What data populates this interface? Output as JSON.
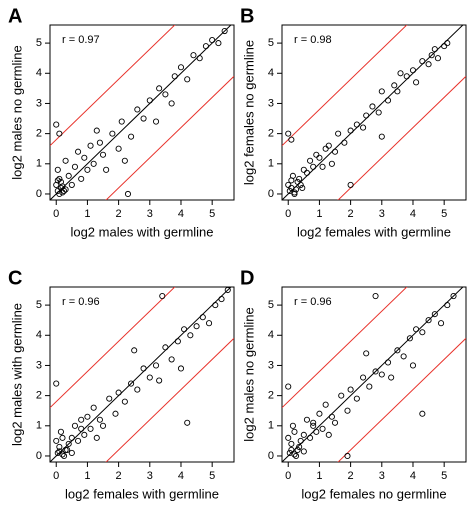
{
  "chart_data": [
    {
      "type": "scatter",
      "title": "A",
      "annotation": "r = 0.97",
      "x_label": "log2 males with germline",
      "y_label": "log2 males no germline",
      "color": "#000000",
      "x": [
        0.05,
        0.1,
        0.15,
        0.2,
        0.0,
        0.3,
        0.1,
        0.05,
        0.0,
        0.1,
        0.4,
        0.5,
        0.6,
        0.8,
        0.9,
        1.0,
        1.1,
        1.2,
        1.4,
        1.5,
        1.6,
        1.8,
        2.0,
        2.1,
        2.3,
        2.4,
        2.6,
        2.8,
        3.0,
        3.2,
        3.3,
        3.5,
        3.7,
        3.8,
        4.0,
        4.2,
        4.4,
        4.6,
        4.8,
        5.0,
        5.2,
        5.4,
        0.7,
        1.3,
        2.2,
        0.3,
        0.2,
        0.15,
        0.25,
        0.05
      ],
      "values": [
        0.1,
        0.0,
        0.2,
        0.05,
        0.3,
        0.15,
        0.5,
        0.8,
        2.3,
        2.0,
        0.6,
        0.3,
        0.9,
        0.5,
        1.2,
        0.8,
        1.6,
        1.0,
        1.7,
        1.3,
        0.8,
        2.0,
        1.5,
        2.4,
        0.0,
        1.9,
        2.8,
        2.5,
        3.1,
        2.4,
        3.5,
        3.3,
        3.0,
        3.9,
        4.2,
        3.8,
        4.6,
        4.5,
        4.9,
        5.1,
        5.0,
        5.4,
        1.4,
        2.1,
        1.1,
        1.1,
        0.25,
        0.4,
        0.1,
        0.45
      ],
      "lines": [
        {
          "slope": 1,
          "intercept": 0,
          "color": "#000000"
        },
        {
          "slope": 1,
          "intercept": 1.8,
          "color": "#e8322b"
        },
        {
          "slope": 1,
          "intercept": -1.8,
          "color": "#e8322b"
        }
      ],
      "xlim": [
        -0.2,
        5.7
      ],
      "ylim": [
        -0.2,
        5.6
      ],
      "xticks": [
        0,
        1,
        2,
        3,
        4,
        5
      ],
      "yticks": [
        0,
        1,
        2,
        3,
        4,
        5
      ]
    },
    {
      "type": "scatter",
      "title": "B",
      "annotation": "r = 0.98",
      "x_label": "log2 females with germline",
      "y_label": "log2 females no germline",
      "color": "#000000",
      "x": [
        0.05,
        0.1,
        0.2,
        0.0,
        0.3,
        0.15,
        0.4,
        0.5,
        0.0,
        0.1,
        0.6,
        0.7,
        0.8,
        0.9,
        1.0,
        1.1,
        1.2,
        1.3,
        1.5,
        1.6,
        1.8,
        2.0,
        2.2,
        2.4,
        2.5,
        2.7,
        2.9,
        3.0,
        3.2,
        3.4,
        3.5,
        3.6,
        3.8,
        4.0,
        4.1,
        4.3,
        4.5,
        4.6,
        4.7,
        4.8,
        5.0,
        5.1,
        0.25,
        0.35,
        2.0,
        1.4,
        3.0,
        0.2,
        0.1,
        0.45
      ],
      "values": [
        0.1,
        0.2,
        0.05,
        0.3,
        0.4,
        0.6,
        0.3,
        0.8,
        2.0,
        1.8,
        0.7,
        1.1,
        0.9,
        1.3,
        1.2,
        0.9,
        1.5,
        1.6,
        1.4,
        2.0,
        1.7,
        2.1,
        2.3,
        2.2,
        2.6,
        2.9,
        2.7,
        3.4,
        3.1,
        3.6,
        3.4,
        4.0,
        3.9,
        4.1,
        3.7,
        4.4,
        4.3,
        4.6,
        4.8,
        4.5,
        4.9,
        5.0,
        0.15,
        0.5,
        0.3,
        1.0,
        1.9,
        0.0,
        0.45,
        0.2
      ],
      "lines": [
        {
          "slope": 1,
          "intercept": 0,
          "color": "#000000"
        },
        {
          "slope": 1,
          "intercept": 1.8,
          "color": "#e8322b"
        },
        {
          "slope": 1,
          "intercept": -1.8,
          "color": "#e8322b"
        }
      ],
      "xlim": [
        -0.2,
        5.7
      ],
      "ylim": [
        -0.2,
        5.6
      ],
      "xticks": [
        0,
        1,
        2,
        3,
        4,
        5
      ],
      "yticks": [
        0,
        1,
        2,
        3,
        4,
        5
      ]
    },
    {
      "type": "scatter",
      "title": "C",
      "annotation": "r = 0.96",
      "x_label": "log2 females with germline",
      "y_label": "log2 males with germline",
      "color": "#000000",
      "x": [
        0.05,
        0.1,
        0.2,
        0.0,
        0.3,
        0.15,
        0.4,
        0.5,
        0.0,
        0.6,
        0.7,
        0.8,
        0.9,
        1.0,
        1.1,
        1.2,
        1.4,
        1.5,
        1.7,
        1.9,
        2.0,
        2.2,
        2.4,
        2.6,
        2.8,
        3.0,
        3.2,
        3.3,
        3.5,
        3.7,
        3.9,
        4.0,
        4.1,
        4.3,
        4.5,
        4.7,
        4.9,
        5.1,
        5.3,
        5.5,
        0.25,
        0.35,
        1.3,
        2.5,
        4.2,
        0.1,
        0.2,
        0.5,
        0.8,
        3.4
      ],
      "values": [
        0.1,
        0.3,
        0.05,
        0.5,
        0.2,
        0.8,
        0.4,
        0.6,
        2.4,
        1.0,
        0.5,
        1.2,
        0.7,
        1.3,
        0.9,
        1.6,
        1.2,
        1.0,
        1.9,
        1.4,
        2.1,
        1.8,
        2.4,
        2.2,
        2.9,
        2.6,
        3.0,
        2.5,
        3.6,
        3.2,
        3.8,
        2.9,
        4.2,
        4.0,
        4.3,
        4.6,
        4.4,
        5.0,
        5.2,
        5.5,
        0.0,
        0.2,
        0.6,
        3.5,
        1.1,
        0.15,
        0.6,
        0.1,
        0.9,
        5.3
      ],
      "lines": [
        {
          "slope": 1,
          "intercept": 0,
          "color": "#000000"
        },
        {
          "slope": 1,
          "intercept": 1.8,
          "color": "#e8322b"
        },
        {
          "slope": 1,
          "intercept": -1.8,
          "color": "#e8322b"
        }
      ],
      "xlim": [
        -0.2,
        5.7
      ],
      "ylim": [
        -0.2,
        5.6
      ],
      "xticks": [
        0,
        1,
        2,
        3,
        4,
        5
      ],
      "yticks": [
        0,
        1,
        2,
        3,
        4,
        5
      ]
    },
    {
      "type": "scatter",
      "title": "D",
      "annotation": "r = 0.96",
      "x_label": "log2 females no germline",
      "y_label": "log2 males no germline",
      "color": "#000000",
      "x": [
        0.05,
        0.1,
        0.2,
        0.0,
        0.3,
        0.15,
        0.4,
        0.5,
        0.0,
        0.6,
        0.7,
        0.8,
        0.9,
        1.0,
        1.1,
        1.2,
        1.4,
        1.5,
        1.7,
        1.9,
        2.0,
        2.2,
        2.4,
        2.6,
        2.8,
        3.0,
        3.2,
        3.3,
        3.5,
        3.7,
        3.9,
        4.0,
        4.1,
        4.3,
        4.5,
        4.7,
        4.9,
        5.1,
        5.3,
        0.25,
        0.35,
        1.3,
        2.5,
        4.3,
        1.9,
        0.1,
        0.2,
        0.5,
        0.8,
        2.8
      ],
      "values": [
        0.1,
        0.4,
        0.05,
        0.6,
        0.2,
        1.0,
        0.5,
        0.7,
        2.3,
        1.2,
        0.6,
        1.0,
        0.8,
        1.4,
        0.9,
        1.7,
        1.3,
        1.1,
        2.0,
        1.5,
        2.2,
        1.9,
        2.6,
        2.3,
        2.8,
        2.7,
        3.1,
        2.6,
        3.5,
        3.3,
        3.9,
        3.0,
        4.2,
        4.1,
        4.5,
        4.7,
        4.4,
        5.0,
        5.3,
        0.0,
        0.3,
        0.7,
        3.4,
        1.4,
        0.0,
        0.2,
        0.8,
        0.15,
        1.1,
        5.3
      ],
      "lines": [
        {
          "slope": 1,
          "intercept": 0,
          "color": "#000000"
        },
        {
          "slope": 1,
          "intercept": 1.8,
          "color": "#e8322b"
        },
        {
          "slope": 1,
          "intercept": -1.8,
          "color": "#e8322b"
        }
      ],
      "xlim": [
        -0.2,
        5.7
      ],
      "ylim": [
        -0.2,
        5.6
      ],
      "xticks": [
        0,
        1,
        2,
        3,
        4,
        5
      ],
      "yticks": [
        0,
        1,
        2,
        3,
        4,
        5
      ]
    }
  ]
}
